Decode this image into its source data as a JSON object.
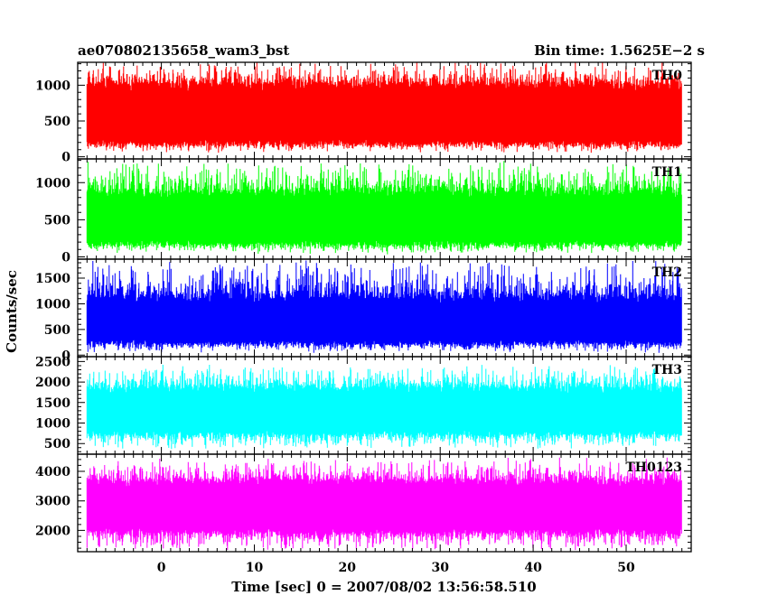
{
  "chart_data": {
    "type": "line",
    "title_left": "ae070802135658_wam3_bst",
    "title_right": "Bin time: 1.5625E−2 s",
    "xlabel": "Time [sec] 0 = 2007/08/02 13:56:58.510",
    "ylabel": "Counts/sec",
    "xlim": [
      -9,
      57
    ],
    "x_ticks": [
      0,
      10,
      20,
      30,
      40,
      50
    ],
    "x_tick_labels": [
      "0",
      "10",
      "20",
      "30",
      "40",
      "50"
    ],
    "data_x_range": [
      -8,
      56
    ],
    "grid": false,
    "panels": [
      {
        "label": "TH0",
        "color": "#ff0000",
        "ylim": [
          -30,
          1320
        ],
        "y_ticks": [
          0,
          500,
          1000
        ],
        "y_tick_labels": [
          "0",
          "500",
          "1000"
        ],
        "band": {
          "low": 150,
          "high": 1050,
          "spike_min": 50,
          "spike_max": 1350
        }
      },
      {
        "label": "TH1",
        "color": "#00ff00",
        "ylim": [
          -30,
          1320
        ],
        "y_ticks": [
          0,
          500,
          1000
        ],
        "y_tick_labels": [
          "0",
          "500",
          "1000"
        ],
        "band": {
          "low": 150,
          "high": 900,
          "spike_min": 30,
          "spike_max": 1300
        }
      },
      {
        "label": "TH2",
        "color": "#0000ff",
        "ylim": [
          -30,
          1870
        ],
        "y_ticks": [
          0,
          500,
          1000,
          1500
        ],
        "y_tick_labels": [
          "0",
          "500",
          "1000",
          "1500"
        ],
        "band": {
          "low": 200,
          "high": 1150,
          "spike_min": 40,
          "spike_max": 1850
        }
      },
      {
        "label": "TH3",
        "color": "#00ffff",
        "ylim": [
          240,
          2620
        ],
        "y_ticks": [
          500,
          1000,
          1500,
          2000,
          2500
        ],
        "y_tick_labels": [
          "500",
          "1000",
          "1500",
          "2000",
          "2500"
        ],
        "band": {
          "low": 700,
          "high": 1900,
          "spike_min": 350,
          "spike_max": 2450
        }
      },
      {
        "label": "TH0123",
        "color": "#ff00ff",
        "ylim": [
          1280,
          4580
        ],
        "y_ticks": [
          2000,
          3000,
          4000
        ],
        "y_tick_labels": [
          "2000",
          "3000",
          "4000"
        ],
        "band": {
          "low": 1900,
          "high": 3750,
          "spike_min": 1300,
          "spike_max": 4500
        }
      }
    ]
  }
}
